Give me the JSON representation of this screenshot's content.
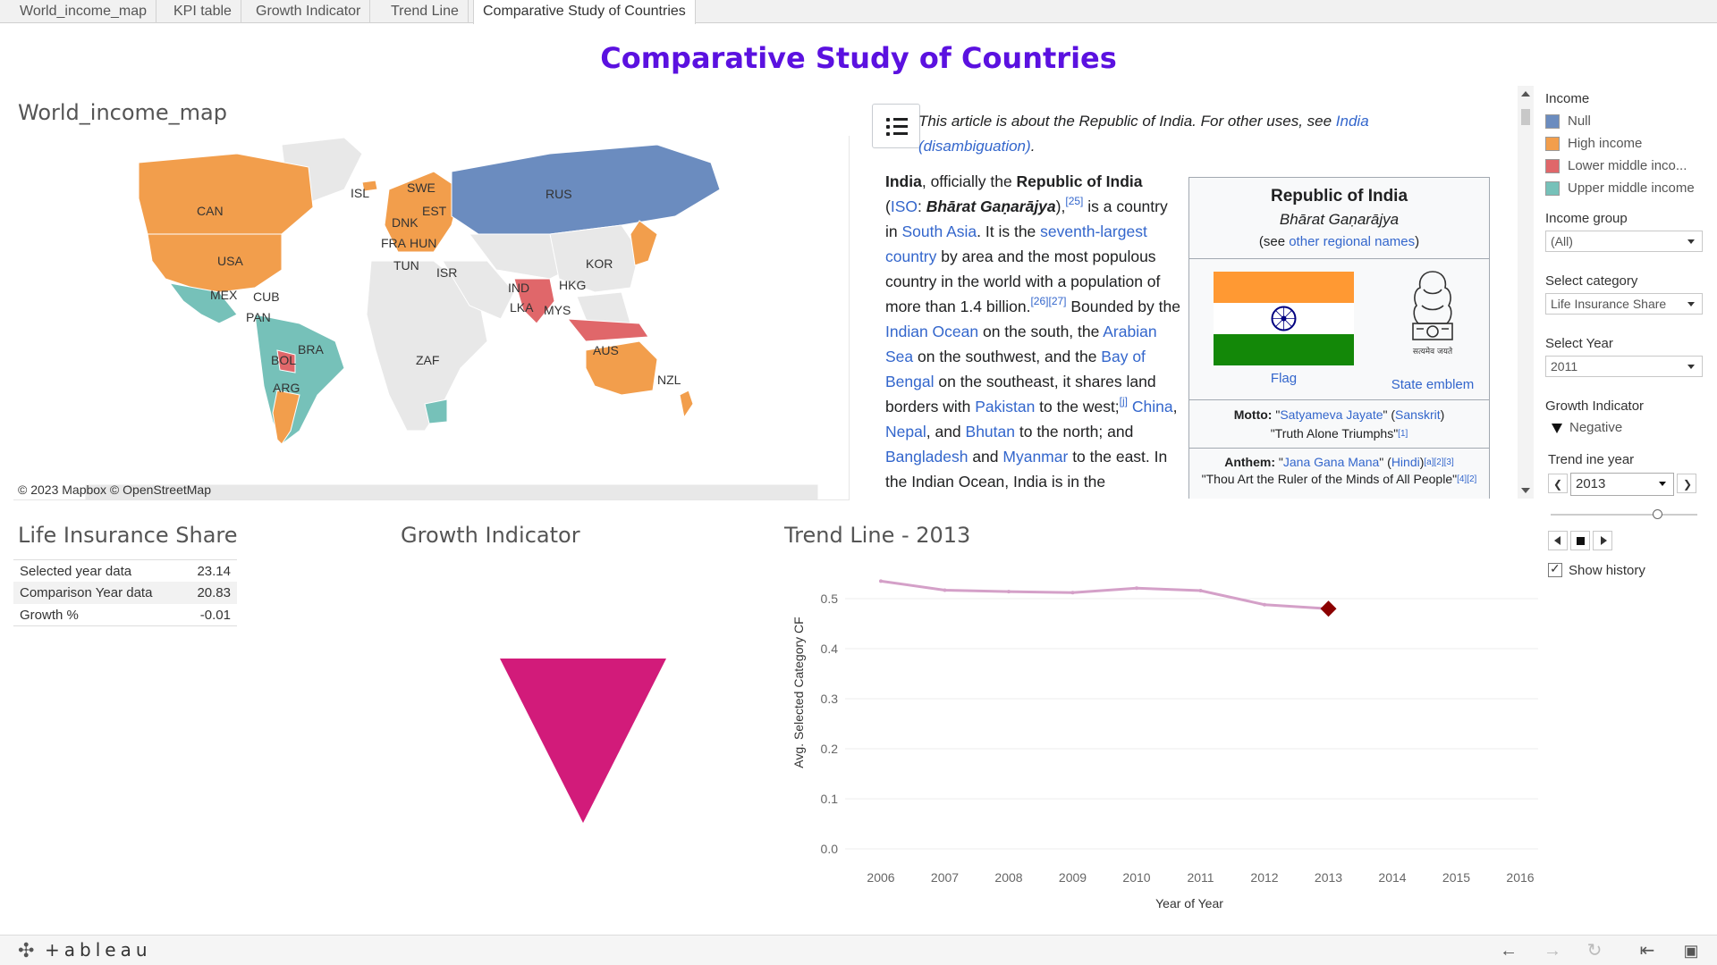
{
  "tabs": [
    {
      "label": "World_income_map"
    },
    {
      "label": "KPI table"
    },
    {
      "label": "Growth Indicator"
    },
    {
      "label": "Trend Line"
    },
    {
      "label": "Comparative Study of Countries"
    }
  ],
  "dashboard_title": "Comparative Study of Countries",
  "map": {
    "title": "World_income_map",
    "credit": "© 2023 Mapbox © OpenStreetMap",
    "country_labels": [
      "CAN",
      "USA",
      "MEX",
      "CUB",
      "PAN",
      "BOL",
      "BRA",
      "ARG",
      "ISL",
      "SWE",
      "DNK",
      "EST",
      "FRA",
      "HUN",
      "TUN",
      "ISR",
      "RUS",
      "IND",
      "LKA",
      "HKG",
      "KOR",
      "MYS",
      "ZAF",
      "AUS",
      "NZL"
    ],
    "colors": {
      "null": "#6b8cbf",
      "high": "#f29e4c",
      "lower_middle": "#e0676a",
      "upper_middle": "#76c1b9",
      "no_data": "#e8e8e8"
    }
  },
  "wiki": {
    "hatnote_pre": "This article is about the Republic of India. For other uses, see ",
    "hatnote_link": "India (disambiguation)",
    "hatnote_post": ".",
    "p1": "India",
    "p2": ", officially the ",
    "p3": "Republic of India",
    "p4": " (",
    "p5": "ISO",
    "p6": ": ",
    "p7": "Bhārat Gaṇarājya",
    "p8": "),",
    "s1": "[25]",
    "p9": " is a country in ",
    "p10": "South Asia",
    "p11": ". It is the ",
    "p12": "seventh-largest country",
    "p13": " by area and the most populous country in the world with a population of more than 1.4 billion.",
    "s2": "[26][27]",
    "p14": " Bounded by the ",
    "p15": "Indian Ocean",
    "p16": " on the south, the ",
    "p17": "Arabian Sea",
    "p18": " on the southwest, and the ",
    "p19": "Bay of Bengal",
    "p20": " on the southeast, it shares land borders with ",
    "p21": "Pakistan",
    "p22": " to the west;",
    "s3": "[j]",
    "p23": "China",
    "p24": ", ",
    "p25": "Nepal",
    "p26": ", and ",
    "p27": "Bhutan",
    "p28": " to the north; and ",
    "p29": "Bangladesh",
    "p30": " and ",
    "p31": "Myanmar",
    "p32": " to the east. In the Indian Ocean, India is in the",
    "infobox": {
      "title": "Republic of India",
      "native": "Bhārat Gaṇarājya",
      "see_pre": "(see ",
      "see_link": "other regional names",
      "see_post": ")",
      "flag_label": "Flag",
      "emblem_label": "State emblem",
      "emblem_text": "सत्यमेव जयते",
      "motto_label": "Motto:",
      "motto_q1": " \"",
      "motto_value": "Satyameva Jayate",
      "motto_q2": "\" (",
      "motto_lang": "Sanskrit",
      "motto_q3": ")",
      "motto_translation": "\"Truth Alone Triumphs\"",
      "motto_ref": "[1]",
      "anthem_label": "Anthem:",
      "anthem_q1": " \"",
      "anthem_value": "Jana Gana Mana",
      "anthem_q2": "\" (",
      "anthem_lang": "Hindi",
      "anthem_q3": ")",
      "anthem_ref": "[a][2][3]",
      "anthem_translation": "\"Thou Art the Ruler of the Minds of All People\"",
      "anthem_ref2": "[4][2]"
    }
  },
  "filters": {
    "income_legend_title": "Income",
    "income_legend": [
      {
        "label": "Null",
        "color": "#6b8cbf"
      },
      {
        "label": "High income",
        "color": "#f29e4c"
      },
      {
        "label": "Lower middle inco...",
        "color": "#e0676a"
      },
      {
        "label": "Upper middle income",
        "color": "#76c1b9"
      }
    ],
    "income_group_label": "Income group",
    "income_group_value": "(All)",
    "category_label": "Select category",
    "category_value": "Life Insurance Share",
    "year_label": "Select Year",
    "year_value": "2011",
    "growth_label": "Growth Indicator",
    "growth_value": "Negative",
    "trend_year_label": "Trend ine year",
    "trend_year_value": "2013",
    "show_history_label": "Show history"
  },
  "kpi": {
    "title": "Life Insurance Share",
    "rows": [
      {
        "label": "Selected year data",
        "value": "23.14"
      },
      {
        "label": "Comparison Year data",
        "value": "20.83"
      },
      {
        "label": "Growth %",
        "value": "-0.01"
      }
    ]
  },
  "growth": {
    "title": "Growth Indicator",
    "direction": "negative",
    "color": "#d21b7a"
  },
  "trend_title": "Trend Line - 2013",
  "chart_data": {
    "type": "line",
    "title": "Trend Line - 2013",
    "xlabel": "Year of Year",
    "ylabel": "Avg. Selected Category CF",
    "x_ticks": [
      "2006",
      "2007",
      "2008",
      "2009",
      "2010",
      "2011",
      "2012",
      "2013",
      "2014",
      "2015",
      "2016"
    ],
    "y_ticks": [
      "0.0",
      "0.1",
      "0.2",
      "0.3",
      "0.4",
      "0.5"
    ],
    "xlim": [
      2006,
      2016
    ],
    "ylim": [
      0,
      0.5
    ],
    "x": [
      2006,
      2007,
      2008,
      2009,
      2010,
      2011,
      2012,
      2013
    ],
    "y": [
      0.535,
      0.517,
      0.514,
      0.512,
      0.521,
      0.516,
      0.488,
      0.48
    ],
    "highlight": {
      "x": 2013,
      "y": 0.48,
      "color": "#8b0000"
    },
    "line_color": "#d4a0c8",
    "grid": true
  },
  "footer": {
    "logo": "+ableau"
  }
}
